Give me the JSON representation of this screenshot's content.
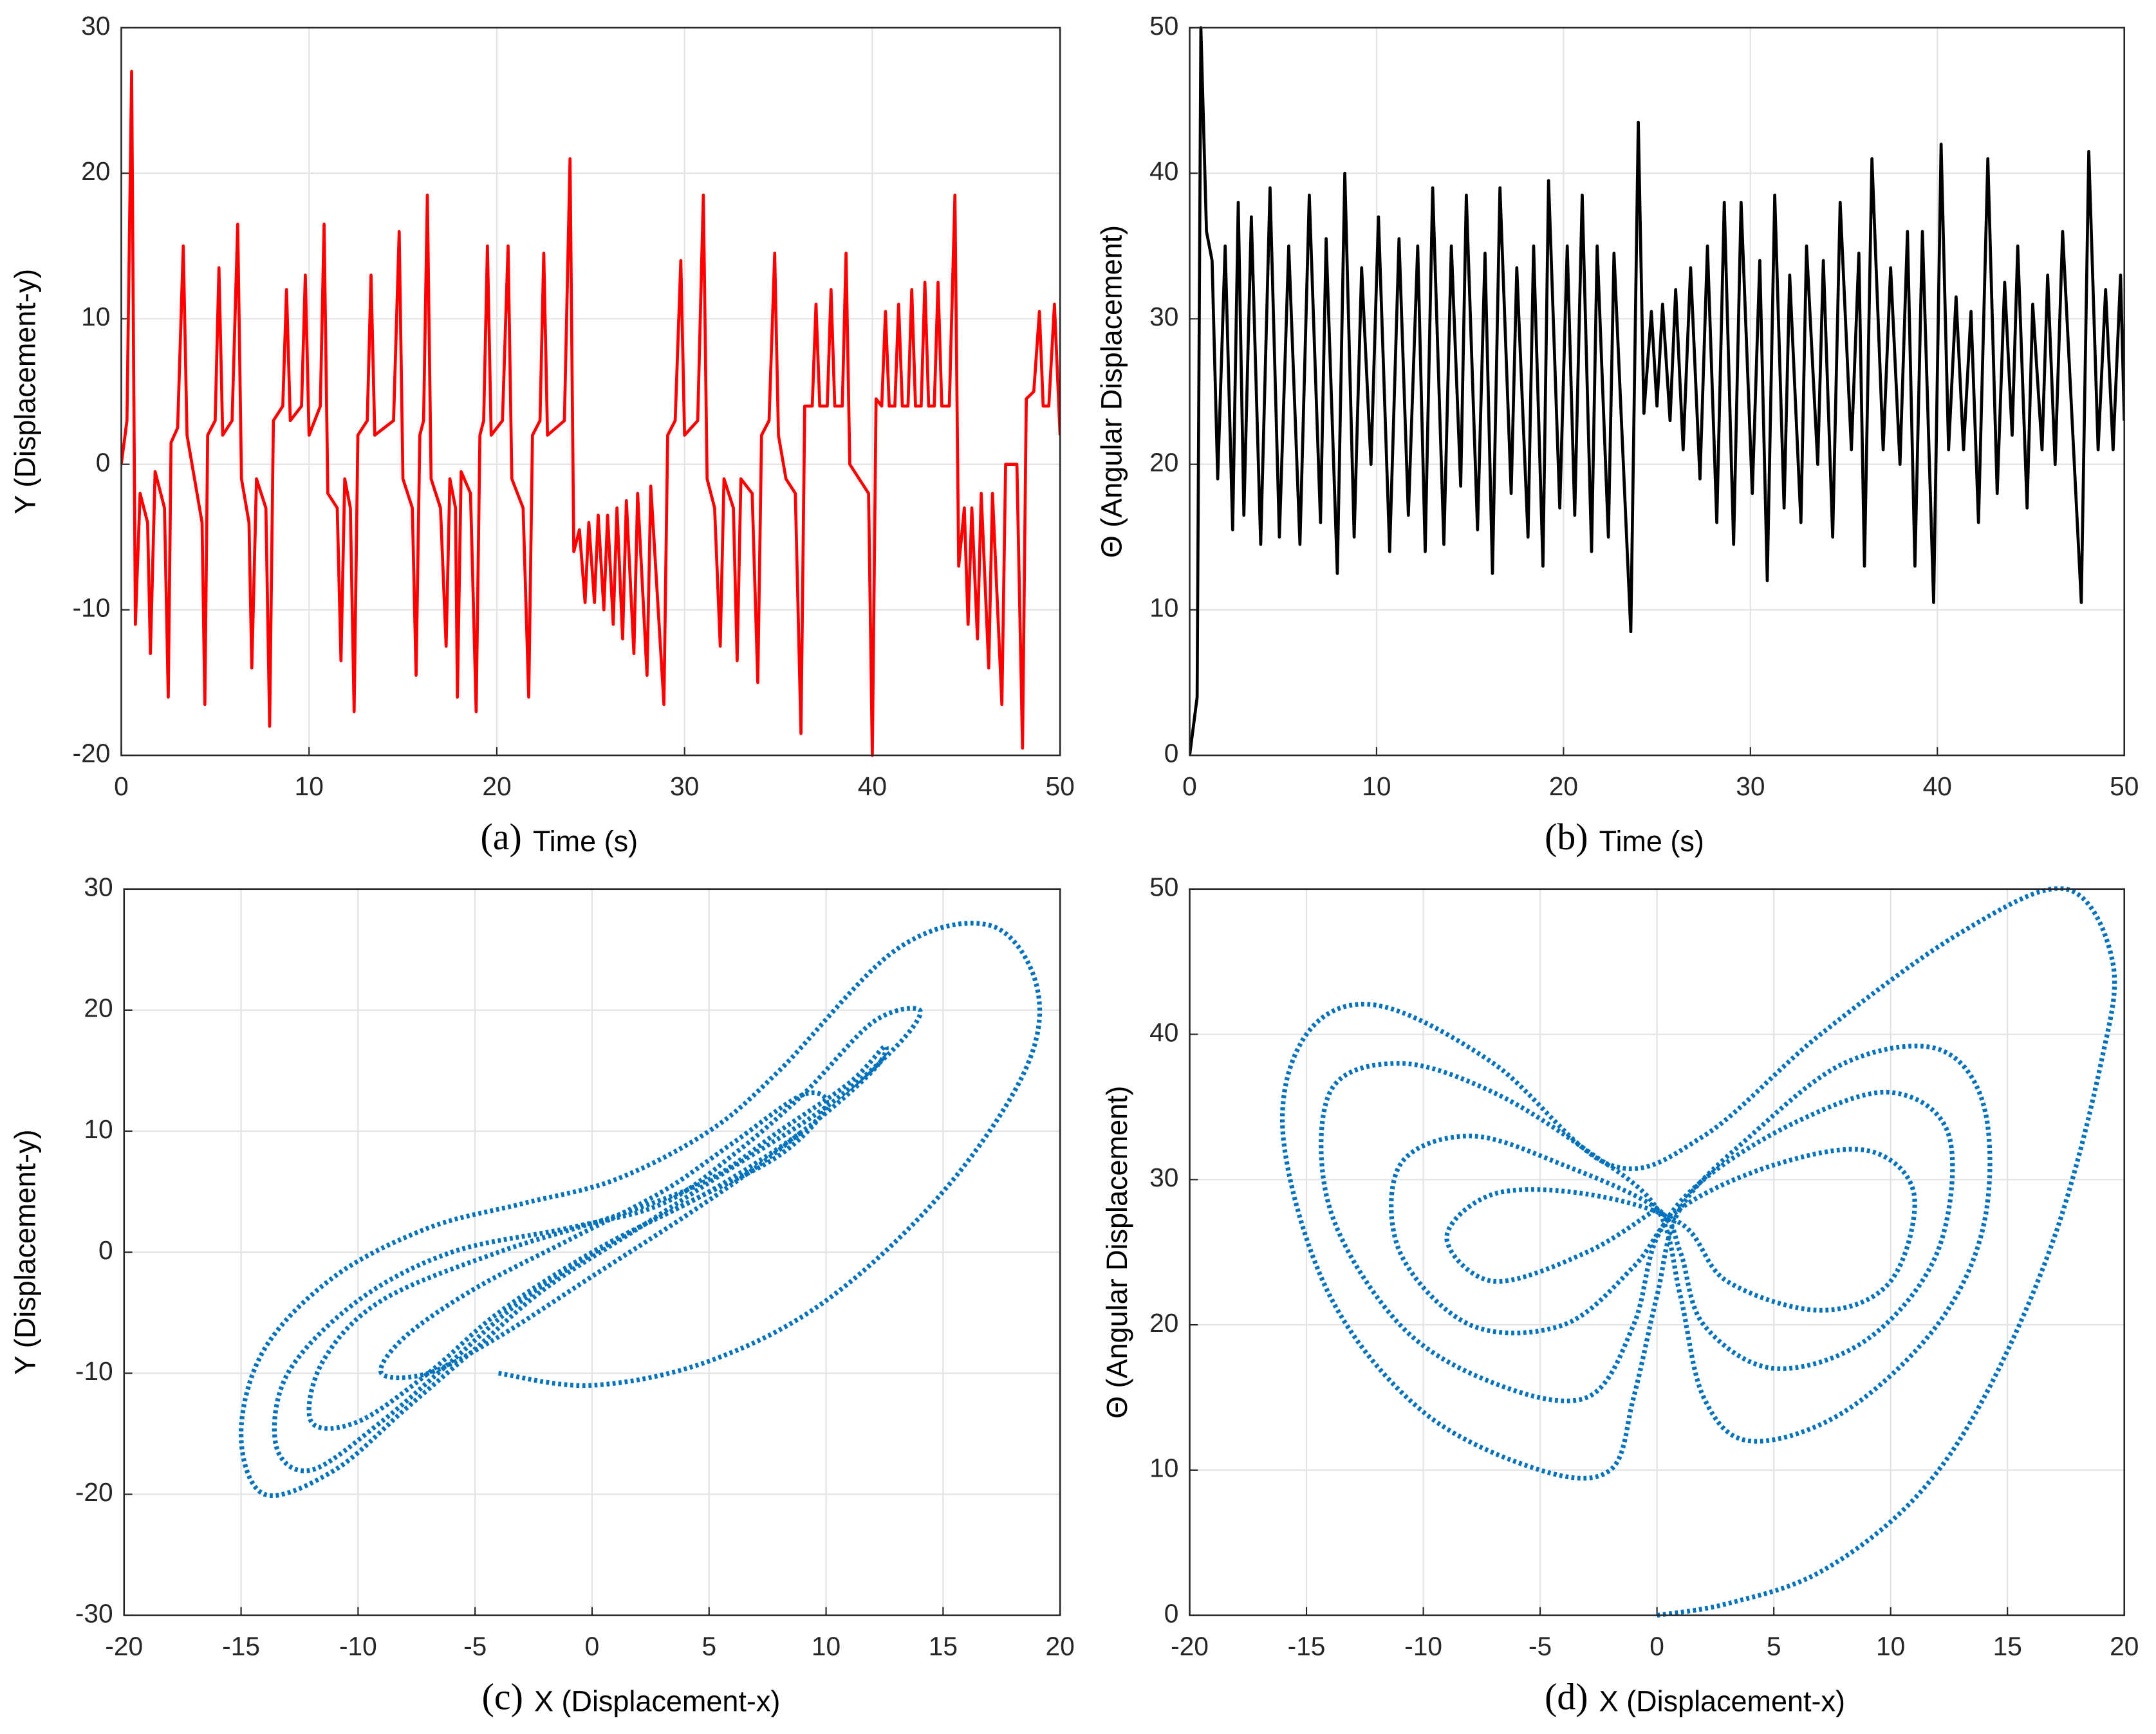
{
  "chart_data": [
    {
      "type": "line",
      "caption": "(a)",
      "xlabel": "Time (s)",
      "ylabel": "Y (Displacement-y)",
      "grid": true,
      "xlim": [
        0,
        50
      ],
      "xticks": [
        0,
        10,
        20,
        30,
        40,
        50
      ],
      "ylim": [
        -20,
        30
      ],
      "yticks": [
        -20,
        -10,
        0,
        10,
        20,
        30
      ],
      "series": [
        {
          "color": "#ff0000",
          "linestyle": "solid",
          "x": [
            0,
            0.3,
            0.55,
            0.75,
            1.0,
            1.4,
            1.55,
            1.8,
            2.3,
            2.5,
            2.65,
            3.0,
            3.3,
            3.5,
            3.9,
            4.3,
            4.45,
            4.6,
            5.0,
            5.2,
            5.4,
            5.9,
            6.2,
            6.4,
            6.8,
            6.95,
            7.2,
            7.7,
            7.9,
            8.1,
            8.6,
            8.8,
            9.0,
            9.6,
            9.8,
            10.0,
            10.6,
            10.8,
            11.0,
            11.5,
            11.7,
            11.9,
            12.2,
            12.4,
            12.6,
            13.1,
            13.3,
            13.5,
            14.5,
            14.8,
            15.0,
            15.5,
            15.7,
            15.9,
            16.1,
            16.3,
            16.5,
            17.0,
            17.3,
            17.5,
            17.8,
            17.9,
            18.1,
            18.6,
            18.9,
            19.1,
            19.3,
            19.5,
            19.7,
            20.3,
            20.6,
            20.8,
            21.4,
            21.7,
            21.9,
            22.3,
            22.5,
            22.7,
            23.6,
            23.9,
            24.1,
            24.4,
            24.7,
            24.9,
            25.2,
            25.4,
            25.7,
            25.9,
            26.2,
            26.4,
            26.7,
            26.9,
            27.3,
            27.5,
            28.0,
            28.2,
            28.9,
            29.1,
            29.5,
            29.8,
            30.0,
            30.7,
            31.0,
            31.2,
            31.6,
            31.9,
            32.1,
            32.6,
            32.8,
            33.0,
            33.6,
            33.9,
            34.1,
            34.5,
            34.8,
            35.0,
            35.4,
            35.9,
            36.2,
            36.4,
            36.8,
            37.0,
            37.2,
            37.6,
            37.8,
            38.0,
            38.4,
            38.6,
            38.8,
            39.3,
            39.8,
            40.0,
            40.2,
            40.5,
            40.7,
            40.9,
            41.2,
            41.4,
            41.6,
            41.9,
            42.1,
            42.3,
            42.6,
            42.8,
            43.0,
            43.3,
            43.5,
            43.7,
            44.1,
            44.4,
            44.6,
            44.9,
            45.1,
            45.3,
            45.6,
            45.8,
            46.2,
            46.4,
            46.9,
            47.1,
            47.7,
            48.0,
            48.2,
            48.6,
            48.9,
            49.1,
            49.4,
            49.7,
            50.0
          ],
          "values": [
            0,
            3,
            27,
            -11,
            -2,
            -4,
            -13,
            -0.5,
            -3,
            -16,
            1.5,
            2.5,
            15,
            2,
            -1,
            -4,
            -16.5,
            2,
            3,
            13.5,
            2,
            3,
            16.5,
            -1,
            -4,
            -14,
            -1,
            -3,
            -18,
            3,
            4,
            12,
            3,
            4,
            13,
            2,
            4,
            16.5,
            -2,
            -3,
            -13.5,
            -1,
            -3,
            -17,
            2,
            3,
            13,
            2,
            3,
            16,
            -1,
            -3,
            -14.5,
            2,
            3,
            18.5,
            -1,
            -3,
            -12.5,
            -1,
            -3,
            -16,
            -0.5,
            -2,
            -17,
            2,
            3,
            15,
            2,
            3,
            15,
            -1,
            -3,
            -16,
            2,
            3,
            14.5,
            2,
            3,
            21,
            -6,
            -4.5,
            -9.5,
            -4,
            -9.5,
            -3.5,
            -10,
            -3.5,
            -11,
            -3,
            -12,
            -2.5,
            -13,
            -2,
            -14.5,
            -1.5,
            -16.5,
            2,
            3,
            14,
            2,
            3,
            18.5,
            -1,
            -3,
            -12.5,
            -1,
            -3,
            -13.5,
            -1,
            -2,
            -15,
            2,
            3,
            14.5,
            2,
            -1,
            -2,
            -18.5,
            4,
            4,
            11,
            4,
            4,
            12,
            4,
            4,
            14.5,
            0,
            -1,
            -2,
            -20,
            4.5,
            4,
            10.5,
            4,
            4,
            11,
            4,
            4,
            12,
            4,
            4,
            12.5,
            4,
            4,
            12.5,
            4,
            4,
            18.5,
            -7,
            -3,
            -11,
            -3,
            -12,
            -2,
            -14,
            -2,
            -16.5,
            0,
            0,
            -19.5,
            4.5,
            5,
            10.5,
            4,
            4,
            11,
            2
          ]
        }
      ]
    },
    {
      "type": "line",
      "caption": "(b)",
      "xlabel": "Time (s)",
      "ylabel": "Θ (Angular Displacement)",
      "grid": true,
      "xlim": [
        0,
        50
      ],
      "xticks": [
        0,
        10,
        20,
        30,
        40,
        50
      ],
      "ylim": [
        0,
        50
      ],
      "yticks": [
        0,
        10,
        20,
        30,
        40,
        50
      ],
      "series": [
        {
          "color": "#000000",
          "linestyle": "solid",
          "x": [
            0,
            0.4,
            0.6,
            0.9,
            1.2,
            1.5,
            1.9,
            2.3,
            2.6,
            2.9,
            3.3,
            3.8,
            4.3,
            4.8,
            5.3,
            5.9,
            6.4,
            7.0,
            7.3,
            7.9,
            8.3,
            8.8,
            9.2,
            9.7,
            10.1,
            10.7,
            11.2,
            11.7,
            12.2,
            12.6,
            13.0,
            13.6,
            14.0,
            14.5,
            14.8,
            15.4,
            15.8,
            16.2,
            16.6,
            17.2,
            17.5,
            18.1,
            18.4,
            18.9,
            19.2,
            19.8,
            20.2,
            20.6,
            21.0,
            21.5,
            21.8,
            22.4,
            22.7,
            23.6,
            24.0,
            24.3,
            24.7,
            25.0,
            25.3,
            25.7,
            26.0,
            26.4,
            26.8,
            27.3,
            27.7,
            28.2,
            28.6,
            29.1,
            29.5,
            30.1,
            30.5,
            30.9,
            31.3,
            31.8,
            32.1,
            32.7,
            33.0,
            33.6,
            33.9,
            34.4,
            34.8,
            35.4,
            35.8,
            36.1,
            36.5,
            37.1,
            37.5,
            38.0,
            38.4,
            38.8,
            39.2,
            39.8,
            40.2,
            40.6,
            41.0,
            41.4,
            41.8,
            42.2,
            42.7,
            43.2,
            43.6,
            44.0,
            44.3,
            44.8,
            45.1,
            45.6,
            45.9,
            46.3,
            46.7,
            47.7,
            48.1,
            48.6,
            49.0,
            49.4,
            49.8,
            50.0
          ],
          "values": [
            0,
            4,
            50,
            36,
            34,
            19,
            35,
            15.5,
            38,
            16.5,
            37,
            14.5,
            39,
            15,
            35,
            14.5,
            38.5,
            16,
            35.5,
            12.5,
            40,
            15,
            33.5,
            20,
            37,
            14,
            35.5,
            16.5,
            35,
            14,
            39,
            14.5,
            35,
            18.5,
            38.5,
            15.5,
            34.5,
            12.5,
            39,
            18,
            33.5,
            15,
            35,
            13,
            39.5,
            17,
            35,
            16.5,
            38.5,
            14,
            35,
            15,
            34.5,
            8.5,
            43.5,
            23.5,
            30.5,
            24,
            31,
            23,
            32,
            21,
            33.5,
            19,
            35,
            16,
            38,
            14.5,
            38,
            18,
            34,
            12,
            38.5,
            17,
            33,
            16,
            35,
            20,
            34,
            15,
            38,
            21,
            34.5,
            13,
            41,
            21,
            33.5,
            20,
            36,
            13,
            36,
            10.5,
            42,
            21,
            31.5,
            21,
            30.5,
            16,
            41,
            18,
            32.5,
            22,
            35,
            17,
            31,
            21,
            33,
            20,
            36,
            10.5,
            41.5,
            21,
            32,
            21,
            33,
            23
          ]
        }
      ]
    },
    {
      "type": "line",
      "caption": "(c)",
      "xlabel": "X (Displacement-x)",
      "ylabel": "Y (Displacement-y)",
      "grid": true,
      "xlim": [
        -20,
        20
      ],
      "xticks": [
        -20,
        -15,
        -10,
        -5,
        0,
        5,
        10,
        15,
        20
      ],
      "ylim": [
        -30,
        30
      ],
      "yticks": [
        -30,
        -20,
        -10,
        0,
        10,
        20,
        30
      ],
      "series": [
        {
          "color": "#0072bd",
          "linestyle": "dotted",
          "x": [
            -4,
            0,
            5,
            10,
            15,
            18.5,
            19,
            17,
            13,
            8,
            5,
            1,
            -3,
            -7,
            -11,
            -14,
            -15,
            -14,
            -11,
            -8,
            -5,
            -2,
            2,
            6,
            10,
            13,
            14,
            12,
            9,
            6,
            3,
            -1,
            -6,
            -10,
            -13,
            -13.5,
            -12,
            -9,
            -6,
            -3,
            1,
            5,
            9,
            12,
            12.5,
            11,
            8,
            5,
            1,
            -4,
            -9,
            -11.5,
            -12,
            -10,
            -7,
            -4,
            0,
            4,
            8,
            10,
            9,
            6,
            3,
            -1,
            -5,
            -8,
            -9,
            -7,
            -4,
            0,
            4,
            7,
            9
          ],
          "values": [
            -10,
            -11,
            -9,
            -4,
            5,
            15,
            22,
            27,
            25,
            15,
            10,
            6,
            4,
            2,
            -2,
            -8,
            -15,
            -20,
            -18,
            -13,
            -8,
            -3,
            2,
            7,
            12,
            17,
            20,
            19,
            13,
            8,
            4,
            2,
            0,
            -4,
            -10,
            -16,
            -18,
            -14,
            -9,
            -4,
            1,
            5,
            10,
            15,
            17,
            14,
            10,
            6,
            3,
            0,
            -4,
            -9,
            -14,
            -14,
            -10,
            -5,
            0,
            4,
            8,
            12,
            13,
            9,
            5,
            1,
            -3,
            -7,
            -10,
            -10,
            -7,
            -2,
            3,
            7,
            10
          ]
        }
      ]
    },
    {
      "type": "line",
      "caption": "(d)",
      "xlabel": "X (Displacement-x)",
      "ylabel": "Θ (Angular Displacement)",
      "grid": true,
      "xlim": [
        -20,
        20
      ],
      "xticks": [
        -20,
        -15,
        -10,
        -5,
        0,
        5,
        10,
        15,
        20
      ],
      "ylim": [
        0,
        50
      ],
      "yticks": [
        0,
        10,
        20,
        30,
        40,
        50
      ],
      "series": [
        {
          "color": "#0072bd",
          "linestyle": "dotted",
          "x": [
            0,
            3,
            7,
            11,
            14,
            17,
            19,
            19.5,
            17.5,
            13,
            7,
            2,
            -2,
            -7,
            -12,
            -15,
            -16,
            -14,
            -10,
            -5,
            -2,
            -1,
            0,
            1,
            4,
            8,
            12,
            14,
            14,
            12,
            8,
            4,
            2,
            1,
            0,
            -3,
            -7,
            -11,
            -14,
            -14,
            -11,
            -7,
            -3,
            -1,
            0,
            2,
            6,
            10,
            12.5,
            12,
            9,
            5,
            2,
            1,
            0,
            -4,
            -8,
            -11,
            -11,
            -8,
            -4,
            -1,
            1,
            5,
            9,
            11,
            10,
            7,
            3,
            1,
            -3,
            -7,
            -9,
            -7,
            -3,
            0
          ],
          "values": [
            0,
            0.8,
            3,
            8,
            15,
            26,
            38,
            45,
            50,
            47,
            40,
            33,
            31,
            38,
            42,
            40,
            33,
            22,
            14,
            10,
            10,
            15,
            22,
            28,
            33,
            38,
            39,
            35,
            27,
            20,
            14,
            12,
            15,
            22,
            28,
            32,
            36,
            38,
            36,
            28,
            20,
            16,
            15,
            20,
            26,
            30,
            34,
            36,
            33,
            25,
            19,
            17,
            20,
            25,
            28,
            31,
            33,
            31,
            25,
            20,
            20,
            24,
            28,
            31,
            32,
            29,
            23,
            21,
            23,
            27,
            29,
            29,
            26,
            23,
            25,
            28
          ]
        }
      ]
    }
  ]
}
